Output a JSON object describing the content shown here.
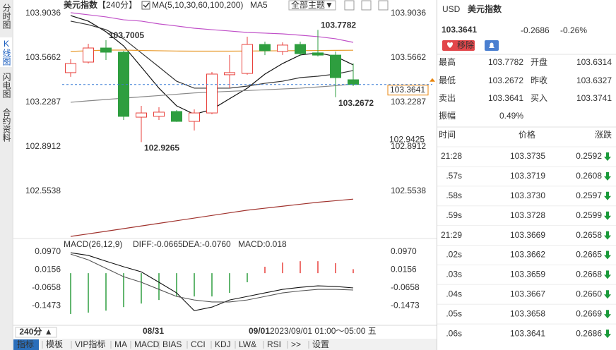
{
  "sidebar": {
    "tabs": [
      "分时图",
      "K线图",
      "闪电图",
      "合约资料"
    ],
    "active": 1
  },
  "chart": {
    "type": "candlestick",
    "title": "美元指数",
    "period": "【240分】",
    "indicator": "MA(5,10,30,60,100,200)",
    "indicator_label": "MA5",
    "theme_button": "全部主题▼",
    "ylim": [
      102.195,
      103.941
    ],
    "yticks": [
      103.9036,
      103.5662,
      103.2287,
      102.8912,
      102.5538
    ],
    "right_marker": 102.9425,
    "last_price": 103.3641,
    "up_color": "#e8413c",
    "down_color": "#2e9e3f",
    "categories": [
      null,
      null,
      null,
      null,
      null,
      "08/31",
      null,
      null,
      null,
      null,
      null,
      "09/01",
      null,
      null,
      null,
      null,
      null
    ],
    "candles": [
      {
        "open": 103.454,
        "high": 103.556,
        "low": 103.422,
        "close": 103.523
      },
      {
        "open": 103.534,
        "high": 103.673,
        "low": 103.523,
        "close": 103.641
      },
      {
        "open": 103.641,
        "high": 103.7005,
        "low": 103.55,
        "close": 103.609
      },
      {
        "open": 103.609,
        "high": 103.62,
        "low": 103.095,
        "close": 103.122
      },
      {
        "open": 103.116,
        "high": 103.202,
        "low": 102.9265,
        "close": 103.148
      },
      {
        "open": 103.122,
        "high": 103.191,
        "low": 103.095,
        "close": 103.154
      },
      {
        "open": 103.159,
        "high": 103.17,
        "low": 103.08,
        "close": 103.084
      },
      {
        "open": 103.084,
        "high": 103.175,
        "low": 103.015,
        "close": 103.148
      },
      {
        "open": 103.148,
        "high": 103.459,
        "low": 103.138,
        "close": 103.443
      },
      {
        "open": 103.438,
        "high": 103.588,
        "low": 103.336,
        "close": 103.454
      },
      {
        "open": 103.448,
        "high": 103.727,
        "low": 103.438,
        "close": 103.668
      },
      {
        "open": 103.668,
        "high": 103.689,
        "low": 103.587,
        "close": 103.62
      },
      {
        "open": 103.615,
        "high": 103.684,
        "low": 103.588,
        "close": 103.663
      },
      {
        "open": 103.668,
        "high": 103.689,
        "low": 103.582,
        "close": 103.598
      },
      {
        "open": 103.604,
        "high": 103.7782,
        "low": 103.577,
        "close": 103.587
      },
      {
        "open": 103.587,
        "high": 103.614,
        "low": 103.2672,
        "close": 103.416
      },
      {
        "open": 103.4,
        "high": 103.523,
        "low": 103.352,
        "close": 103.3641
      }
    ],
    "annotations": [
      103.7005,
      103.7782,
      102.9265,
      103.2672
    ],
    "series": [
      {
        "color": "#111111",
        "values": [
          103.887,
          103.845,
          103.764,
          103.657,
          103.497,
          103.336,
          103.202,
          103.138,
          103.175,
          103.256,
          103.336,
          103.443,
          103.523,
          103.588,
          103.604,
          103.577,
          103.513
        ]
      },
      {
        "color": "#333333",
        "values": [
          103.845,
          103.818,
          103.78,
          103.711,
          103.604,
          103.497,
          103.389,
          103.336,
          103.336,
          103.336,
          103.352,
          103.373,
          103.389,
          103.416,
          103.427,
          103.443,
          103.47
        ]
      },
      {
        "color": "#c050c8",
        "values": [
          103.909,
          103.893,
          103.877,
          103.855,
          103.845,
          103.824,
          103.808,
          103.791,
          103.78,
          103.77,
          103.759,
          103.754,
          103.748,
          103.738,
          103.727,
          103.711,
          103.684
        ]
      },
      {
        "color": "#e89a2c",
        "values": [
          103.615,
          103.62,
          103.625,
          103.625,
          103.622,
          103.62,
          103.618,
          103.617,
          103.617,
          103.617,
          103.618,
          103.619,
          103.62,
          103.621,
          103.622,
          103.623,
          103.624
        ]
      },
      {
        "color": "#888888",
        "values": [
          103.229,
          103.24,
          103.25,
          103.26,
          103.27,
          103.28,
          103.29,
          103.3,
          103.306,
          103.312,
          103.318,
          103.324,
          103.33,
          103.336,
          103.345,
          103.355,
          103.368
        ]
      },
      {
        "color": "#a0322d",
        "values": [
          102.211,
          102.23,
          102.25,
          102.27,
          102.29,
          102.31,
          102.33,
          102.35,
          102.37,
          102.39,
          102.41,
          102.425,
          102.44,
          102.455,
          102.47,
          102.482,
          102.494
        ]
      }
    ],
    "macd": {
      "legend": [
        {
          "text": "MACD(26,12,9)",
          "color": "#222222"
        },
        {
          "text": "DIFF:-0.0665",
          "color": "#222222"
        },
        {
          "text": "DEA:-0.0760",
          "color": "#222222"
        },
        {
          "text": "MACD:0.018",
          "color": "#cc33cc"
        }
      ],
      "ylim": [
        -0.216,
        0.134
      ],
      "yticks": [
        {
          "value": 0.097,
          "label": "0.0970"
        },
        0.0156,
        -0.0658,
        -0.1473
      ],
      "histogram": [
        -0.184,
        -0.178,
        -0.169,
        -0.153,
        -0.137,
        -0.121,
        -0.105,
        -0.105,
        -0.105,
        -0.089,
        -0.041,
        0.029,
        0.048,
        0.054,
        0.054,
        0.045,
        0.018
      ],
      "diff": [
        0.092,
        0.08,
        0.054,
        0.029,
        0.006,
        -0.041,
        -0.089,
        -0.169,
        -0.153,
        -0.121,
        -0.105,
        -0.089,
        -0.073,
        -0.064,
        -0.057,
        -0.06,
        -0.0665
      ],
      "dea": [
        0.086,
        0.06,
        0.022,
        -0.016,
        -0.041,
        -0.073,
        -0.105,
        -0.121,
        -0.13,
        -0.13,
        -0.121,
        -0.105,
        -0.089,
        -0.08,
        -0.073,
        -0.073,
        -0.076
      ]
    },
    "period_button": "240分 ▲",
    "cursor_info": "2023/09/01 01:00～05:00 五"
  },
  "quote": {
    "code": "USD",
    "name": "美元指数",
    "price": "103.3641",
    "change": "-0.2686",
    "change_pct": "-0.26%",
    "color": "#1a9a3a",
    "remove_button": "移除",
    "stats": [
      [
        {
          "label": "最高",
          "value": "103.7782",
          "color": "#e0323a"
        },
        {
          "label": "开盘",
          "value": "103.6314",
          "color": "#1a9a3a"
        }
      ],
      [
        {
          "label": "最低",
          "value": "103.2672",
          "color": "#1a9a3a"
        },
        {
          "label": "昨收",
          "value": "103.6327",
          "color": "#222222"
        }
      ],
      [
        {
          "label": "卖出",
          "value": "103.3641",
          "color": "#1a9a3a"
        },
        {
          "label": "买入",
          "value": "103.3741",
          "color": "#1a9a3a"
        }
      ],
      [
        {
          "label": "振幅",
          "value": "0.49%",
          "color": "#222222"
        }
      ]
    ]
  },
  "trades": {
    "header": [
      "时间",
      "价格",
      "涨跌"
    ],
    "color": "#1a9a3a",
    "rows": [
      {
        "time": "21:28",
        "price": "103.3735",
        "change": "0.2592"
      },
      {
        "time": ".57s",
        "price": "103.3719",
        "change": "0.2608"
      },
      {
        "time": ".58s",
        "price": "103.3730",
        "change": "0.2597"
      },
      {
        "time": ".59s",
        "price": "103.3728",
        "change": "0.2599"
      },
      {
        "time": "21:29",
        "price": "103.3669",
        "change": "0.2658"
      },
      {
        "time": ".02s",
        "price": "103.3662",
        "change": "0.2665"
      },
      {
        "time": ".03s",
        "price": "103.3659",
        "change": "0.2668"
      },
      {
        "time": ".04s",
        "price": "103.3667",
        "change": "0.2660"
      },
      {
        "time": ".05s",
        "price": "103.3658",
        "change": "0.2669"
      },
      {
        "time": ".06s",
        "price": "103.3641",
        "change": "0.2686"
      }
    ]
  },
  "toolbar": [
    "指标",
    "模板",
    "VIP指标",
    "MA",
    "MACD",
    "BIAS",
    "CCI",
    "KDJ",
    "LW&",
    "RSI",
    ">>",
    "设置"
  ]
}
